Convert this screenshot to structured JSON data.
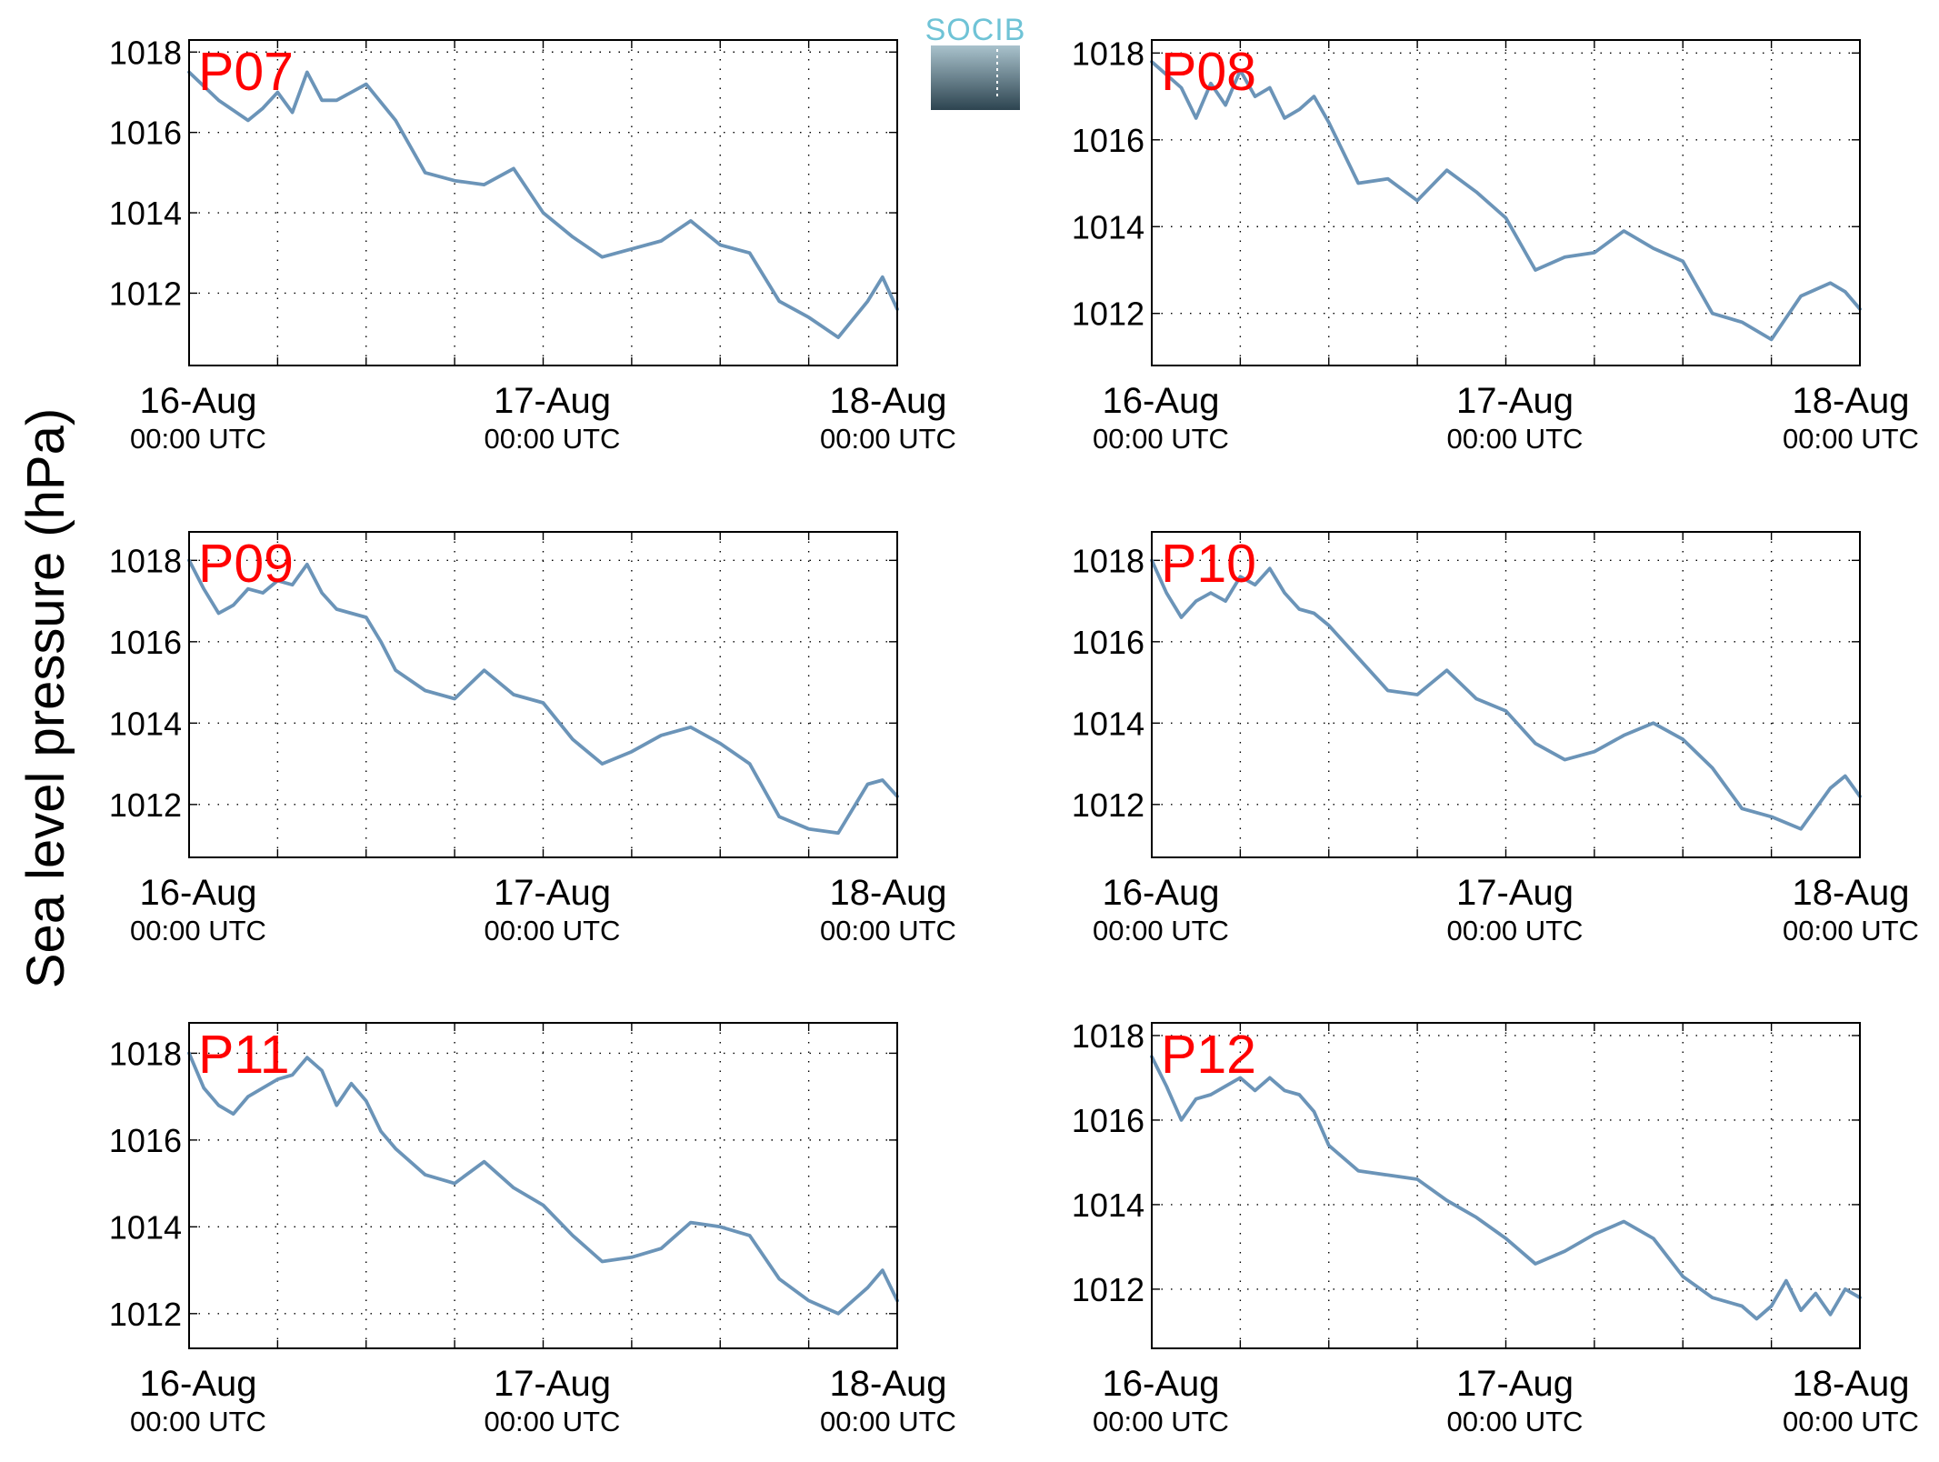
{
  "figure": {
    "ylabel": "Sea level pressure (hPa)",
    "logo_text": "SOCIB"
  },
  "colors": {
    "line": "#6b94b8",
    "station_label": "#ff0000",
    "axes": "#000000",
    "logo_text": "#6fc3d6",
    "logo_top": "#a9c2cc",
    "logo_bottom": "#2d4450"
  },
  "chart_data": [
    {
      "type": "line",
      "station": "P07",
      "ylim": [
        1010.2,
        1018.3
      ],
      "yticks": [
        "1012",
        "1014",
        "1016",
        "1018"
      ],
      "xticks": [
        {
          "date": "16-Aug",
          "time": "00:00 UTC"
        },
        {
          "date": "17-Aug",
          "time": "00:00 UTC"
        },
        {
          "date": "18-Aug",
          "time": "00:00 UTC"
        }
      ],
      "grid": true,
      "x_hours": [
        0,
        2,
        4,
        5,
        6,
        7,
        8,
        9,
        10,
        11,
        12,
        14,
        16,
        18,
        20,
        22,
        24,
        26,
        28,
        30,
        32,
        34,
        36,
        38,
        40,
        42,
        44,
        46,
        47,
        48
      ],
      "y": [
        1017.5,
        1016.8,
        1016.3,
        1016.6,
        1017.0,
        1016.5,
        1017.5,
        1016.8,
        1016.8,
        1017.0,
        1017.2,
        1016.3,
        1015.0,
        1014.8,
        1014.7,
        1015.1,
        1014.0,
        1013.4,
        1012.9,
        1013.1,
        1013.3,
        1013.8,
        1013.2,
        1013.0,
        1011.8,
        1011.4,
        1010.9,
        1011.8,
        1012.4,
        1011.6
      ]
    },
    {
      "type": "line",
      "station": "P08",
      "ylim": [
        1010.8,
        1018.3
      ],
      "yticks": [
        "1012",
        "1014",
        "1016",
        "1018"
      ],
      "xticks": [
        {
          "date": "16-Aug",
          "time": "00:00 UTC"
        },
        {
          "date": "17-Aug",
          "time": "00:00 UTC"
        },
        {
          "date": "18-Aug",
          "time": "00:00 UTC"
        }
      ],
      "grid": true,
      "x_hours": [
        0,
        2,
        3,
        4,
        5,
        6,
        7,
        8,
        9,
        10,
        11,
        12,
        14,
        16,
        18,
        20,
        22,
        24,
        26,
        28,
        30,
        32,
        34,
        36,
        38,
        40,
        42,
        44,
        46,
        47,
        48
      ],
      "y": [
        1017.8,
        1017.2,
        1016.5,
        1017.3,
        1016.8,
        1017.6,
        1017.0,
        1017.2,
        1016.5,
        1016.7,
        1017.0,
        1016.4,
        1015.0,
        1015.1,
        1014.6,
        1015.3,
        1014.8,
        1014.2,
        1013.0,
        1013.3,
        1013.4,
        1013.9,
        1013.5,
        1013.2,
        1012.0,
        1011.8,
        1011.4,
        1012.4,
        1012.7,
        1012.5,
        1012.1
      ]
    },
    {
      "type": "line",
      "station": "P09",
      "ylim": [
        1010.7,
        1018.7
      ],
      "yticks": [
        "1012",
        "1014",
        "1016",
        "1018"
      ],
      "xticks": [
        {
          "date": "16-Aug",
          "time": "00:00 UTC"
        },
        {
          "date": "17-Aug",
          "time": "00:00 UTC"
        },
        {
          "date": "18-Aug",
          "time": "00:00 UTC"
        }
      ],
      "grid": true,
      "x_hours": [
        0,
        1,
        2,
        3,
        4,
        5,
        6,
        7,
        8,
        9,
        10,
        11,
        12,
        13,
        14,
        16,
        18,
        20,
        22,
        24,
        26,
        28,
        30,
        32,
        34,
        36,
        38,
        40,
        42,
        44,
        46,
        47,
        48
      ],
      "y": [
        1018.0,
        1017.3,
        1016.7,
        1016.9,
        1017.3,
        1017.2,
        1017.5,
        1017.4,
        1017.9,
        1017.2,
        1016.8,
        1016.7,
        1016.6,
        1016.0,
        1015.3,
        1014.8,
        1014.6,
        1015.3,
        1014.7,
        1014.5,
        1013.6,
        1013.0,
        1013.3,
        1013.7,
        1013.9,
        1013.5,
        1013.0,
        1011.7,
        1011.4,
        1011.3,
        1012.5,
        1012.6,
        1012.2
      ]
    },
    {
      "type": "line",
      "station": "P10",
      "ylim": [
        1010.7,
        1018.7
      ],
      "yticks": [
        "1012",
        "1014",
        "1016",
        "1018"
      ],
      "xticks": [
        {
          "date": "16-Aug",
          "time": "00:00 UTC"
        },
        {
          "date": "17-Aug",
          "time": "00:00 UTC"
        },
        {
          "date": "18-Aug",
          "time": "00:00 UTC"
        }
      ],
      "grid": true,
      "x_hours": [
        0,
        1,
        2,
        3,
        4,
        5,
        6,
        7,
        8,
        9,
        10,
        11,
        12,
        14,
        16,
        18,
        20,
        22,
        24,
        26,
        28,
        30,
        32,
        34,
        36,
        38,
        40,
        42,
        44,
        46,
        47,
        48
      ],
      "y": [
        1018.0,
        1017.2,
        1016.6,
        1017.0,
        1017.2,
        1017.0,
        1017.6,
        1017.4,
        1017.8,
        1017.2,
        1016.8,
        1016.7,
        1016.4,
        1015.6,
        1014.8,
        1014.7,
        1015.3,
        1014.6,
        1014.3,
        1013.5,
        1013.1,
        1013.3,
        1013.7,
        1014.0,
        1013.6,
        1012.9,
        1011.9,
        1011.7,
        1011.4,
        1012.4,
        1012.7,
        1012.2
      ]
    },
    {
      "type": "line",
      "station": "P11",
      "ylim": [
        1011.2,
        1018.7
      ],
      "yticks": [
        "1012",
        "1014",
        "1016",
        "1018"
      ],
      "xticks": [
        {
          "date": "16-Aug",
          "time": "00:00 UTC"
        },
        {
          "date": "17-Aug",
          "time": "00:00 UTC"
        },
        {
          "date": "18-Aug",
          "time": "00:00 UTC"
        }
      ],
      "grid": true,
      "x_hours": [
        0,
        1,
        2,
        3,
        4,
        5,
        6,
        7,
        8,
        9,
        10,
        11,
        12,
        13,
        14,
        16,
        18,
        20,
        22,
        24,
        26,
        28,
        30,
        32,
        34,
        36,
        38,
        40,
        42,
        44,
        46,
        47,
        48
      ],
      "y": [
        1018.0,
        1017.2,
        1016.8,
        1016.6,
        1017.0,
        1017.2,
        1017.4,
        1017.5,
        1017.9,
        1017.6,
        1016.8,
        1017.3,
        1016.9,
        1016.2,
        1015.8,
        1015.2,
        1015.0,
        1015.5,
        1014.9,
        1014.5,
        1013.8,
        1013.2,
        1013.3,
        1013.5,
        1014.1,
        1014.0,
        1013.8,
        1012.8,
        1012.3,
        1012.0,
        1012.6,
        1013.0,
        1012.3
      ]
    },
    {
      "type": "line",
      "station": "P12",
      "ylim": [
        1010.6,
        1018.3
      ],
      "yticks": [
        "1012",
        "1014",
        "1016",
        "1018"
      ],
      "xticks": [
        {
          "date": "16-Aug",
          "time": "00:00 UTC"
        },
        {
          "date": "17-Aug",
          "time": "00:00 UTC"
        },
        {
          "date": "18-Aug",
          "time": "00:00 UTC"
        }
      ],
      "grid": true,
      "x_hours": [
        0,
        1,
        2,
        3,
        4,
        5,
        6,
        7,
        8,
        9,
        10,
        11,
        12,
        14,
        16,
        18,
        20,
        22,
        24,
        26,
        28,
        30,
        32,
        34,
        36,
        38,
        40,
        41,
        42,
        43,
        44,
        45,
        46,
        47,
        48
      ],
      "y": [
        1017.5,
        1016.8,
        1016.0,
        1016.5,
        1016.6,
        1016.8,
        1017.0,
        1016.7,
        1017.0,
        1016.7,
        1016.6,
        1016.2,
        1015.4,
        1014.8,
        1014.7,
        1014.6,
        1014.1,
        1013.7,
        1013.2,
        1012.6,
        1012.9,
        1013.3,
        1013.6,
        1013.2,
        1012.3,
        1011.8,
        1011.6,
        1011.3,
        1011.6,
        1012.2,
        1011.5,
        1011.9,
        1011.4,
        1012.0,
        1011.8
      ]
    }
  ]
}
